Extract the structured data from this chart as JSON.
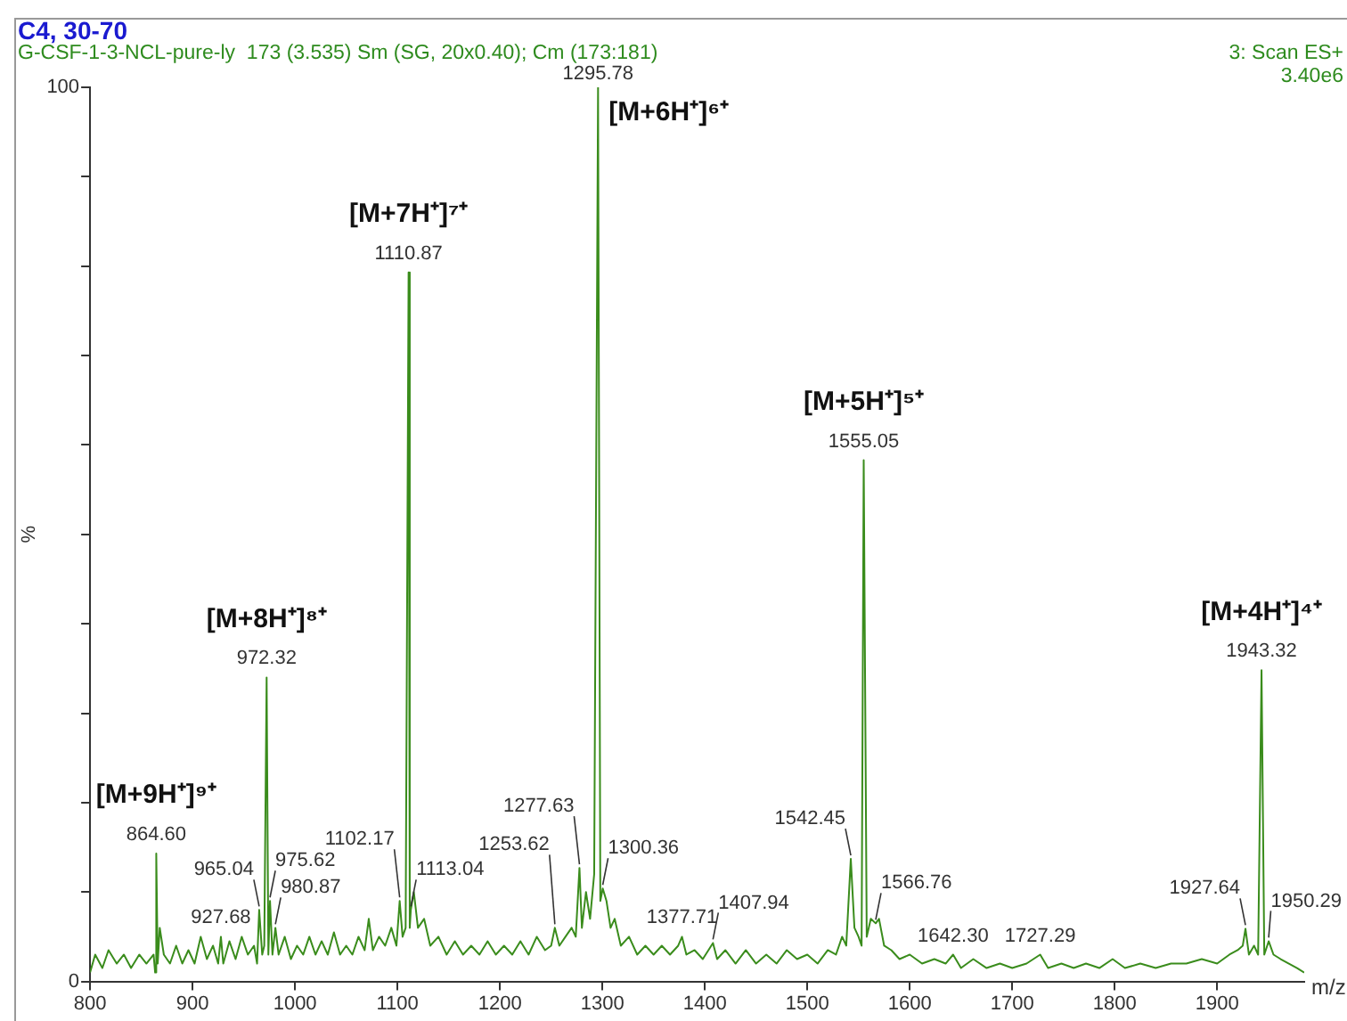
{
  "chart_data": {
    "type": "line",
    "title": "C4, 30-70",
    "subtitle": "G-CSF-1-3-NCL-pure-ly  173 (3.535) Sm (SG, 20x0.40); Cm (173:181)",
    "xlabel": "m/z",
    "ylabel": "%",
    "xlim": [
      800,
      1985
    ],
    "xticks": [
      800,
      900,
      1000,
      1100,
      1200,
      1300,
      1400,
      1500,
      1600,
      1700,
      1800,
      1900
    ],
    "ylim": [
      0,
      100
    ],
    "yticks": [
      0,
      {
        "value": 10,
        "label": null
      },
      {
        "value": 20,
        "label": null
      },
      {
        "value": 30,
        "label": null
      },
      {
        "value": 40,
        "label": null
      },
      {
        "value": 50,
        "label": null
      },
      {
        "value": 60,
        "label": null
      },
      {
        "value": 70,
        "label": null
      },
      {
        "value": 80,
        "label": null
      },
      {
        "value": 90,
        "label": null
      },
      100
    ],
    "grid": false,
    "legend": false,
    "marker": "none",
    "line_style": "solid",
    "series": [
      {
        "color": "#3a8c1c",
        "x": [
          800,
          805,
          812,
          818,
          826,
          833,
          840,
          848,
          855,
          862,
          863.5,
          864.6,
          866,
          868,
          872,
          878,
          884,
          890,
          896,
          902,
          908,
          914,
          920,
          925,
          927.68,
          930,
          936,
          942,
          948,
          954,
          960,
          963,
          965.04,
          968,
          970,
          972.32,
          974,
          975.62,
          978,
          980.87,
          984,
          990,
          996,
          1002,
          1008,
          1014,
          1020,
          1026,
          1032,
          1038,
          1044,
          1050,
          1056,
          1062,
          1068,
          1072,
          1076,
          1082,
          1088,
          1094,
          1099,
          1102.17,
          1105,
          1108,
          1110.87,
          1112,
          1113.04,
          1116,
          1120,
          1126,
          1132,
          1140,
          1148,
          1156,
          1164,
          1172,
          1180,
          1188,
          1196,
          1204,
          1212,
          1220,
          1228,
          1236,
          1244,
          1250,
          1253.62,
          1258,
          1264,
          1270,
          1274,
          1277.63,
          1280,
          1284,
          1288,
          1292,
          1295.78,
          1298,
          1300.36,
          1304,
          1308,
          1312,
          1318,
          1326,
          1334,
          1342,
          1350,
          1358,
          1366,
          1374,
          1377.71,
          1382,
          1390,
          1398,
          1407.94,
          1412,
          1420,
          1430,
          1440,
          1450,
          1460,
          1470,
          1480,
          1490,
          1500,
          1510,
          1520,
          1528,
          1534,
          1538,
          1542.45,
          1546,
          1550,
          1553,
          1555.05,
          1558,
          1562,
          1566.76,
          1570,
          1575,
          1582,
          1590,
          1600,
          1612,
          1624,
          1635,
          1642.3,
          1650,
          1662,
          1675,
          1688,
          1700,
          1714,
          1727.29,
          1735,
          1748,
          1760,
          1772,
          1785,
          1798,
          1810,
          1825,
          1840,
          1855,
          1870,
          1885,
          1900,
          1912,
          1920,
          1925,
          1927.64,
          1931,
          1936,
          1940,
          1943.32,
          1946,
          1950.29,
          1955,
          1962,
          1970,
          1978,
          1985
        ],
        "values": [
          1,
          3,
          1.5,
          3.5,
          2,
          3,
          1.5,
          3,
          2,
          3,
          1,
          14.3,
          2,
          6,
          3,
          2,
          4,
          2,
          3.5,
          2,
          5,
          2.5,
          4,
          2,
          5,
          2,
          4.5,
          2.5,
          5,
          3,
          4,
          2,
          8,
          3,
          4,
          34,
          3,
          9,
          3,
          6,
          3,
          5,
          2.5,
          4,
          3,
          5,
          3,
          4.5,
          3,
          5.5,
          3,
          4,
          3,
          5,
          3.5,
          7,
          3.5,
          5,
          4,
          6,
          4,
          9,
          5,
          6,
          79.3,
          6,
          8,
          10,
          6,
          7,
          4,
          5,
          3,
          4.5,
          3,
          4,
          3,
          4.5,
          3,
          4,
          3,
          4.5,
          3,
          5,
          3.5,
          4,
          6,
          4,
          5,
          6,
          5,
          12.7,
          6,
          10,
          7,
          12,
          100,
          9,
          10.4,
          9,
          6,
          7,
          4,
          5,
          3,
          4,
          3,
          4,
          3,
          4,
          5,
          3,
          3.5,
          2.5,
          4.3,
          2.5,
          3.5,
          2,
          3.5,
          2,
          3,
          2,
          3.5,
          2.5,
          3,
          2,
          3.5,
          3,
          5,
          4,
          13.7,
          6,
          5,
          4,
          58.3,
          5,
          7,
          6.5,
          7,
          4,
          3.5,
          2.5,
          3,
          2,
          2.5,
          2,
          3,
          1.5,
          2.5,
          1.5,
          2,
          1.5,
          2,
          3,
          1.5,
          2,
          1.5,
          2,
          1.5,
          2.5,
          1.5,
          2,
          1.5,
          2,
          2,
          2.5,
          2,
          3,
          3.5,
          4,
          5.9,
          3,
          4,
          3,
          34.8,
          3,
          4.5,
          3,
          2.5,
          2,
          1.5,
          1
        ]
      }
    ],
    "annotations": [
      "3: Scan ES+",
      "3.40e6",
      {
        "text": "864.60",
        "x": 864.6,
        "y": 14.3
      },
      {
        "text": "[M+9H⁺]⁹⁺",
        "x": 864.6,
        "y": 14.3
      },
      {
        "text": "927.68",
        "x": 927.68,
        "y": 5
      },
      {
        "text": "965.04",
        "x": 965.04,
        "y": 8
      },
      {
        "text": "972.32",
        "x": 972.32,
        "y": 34
      },
      {
        "text": "[M+8H⁺]⁸⁺",
        "x": 972.32,
        "y": 34
      },
      {
        "text": "975.62",
        "x": 975.62,
        "y": 9
      },
      {
        "text": "980.87",
        "x": 980.87,
        "y": 6
      },
      {
        "text": "1102.17",
        "x": 1102.17,
        "y": 9
      },
      {
        "text": "1110.87",
        "x": 1110.87,
        "y": 79.3
      },
      {
        "text": "[M+7H⁺]⁷⁺",
        "x": 1110.87,
        "y": 79.3
      },
      {
        "text": "1113.04",
        "x": 1113.04,
        "y": 8
      },
      {
        "text": "1253.62",
        "x": 1253.62,
        "y": 6
      },
      {
        "text": "1277.63",
        "x": 1277.63,
        "y": 12.7
      },
      {
        "text": "1295.78",
        "x": 1295.78,
        "y": 100
      },
      {
        "text": "[M+6H⁺]⁶⁺",
        "x": 1295.78,
        "y": 100
      },
      {
        "text": "1300.36",
        "x": 1300.36,
        "y": 10.4
      },
      {
        "text": "1377.71",
        "x": 1377.71,
        "y": 5
      },
      {
        "text": "1407.94",
        "x": 1407.94,
        "y": 4.3
      },
      {
        "text": "1542.45",
        "x": 1542.45,
        "y": 13.7
      },
      {
        "text": "1555.05",
        "x": 1555.05,
        "y": 58.3
      },
      {
        "text": "[M+5H⁺]⁵⁺",
        "x": 1555.05,
        "y": 58.3
      },
      {
        "text": "1566.76",
        "x": 1566.76,
        "y": 6.5
      },
      {
        "text": "1642.30",
        "x": 1642.3,
        "y": 3
      },
      {
        "text": "1727.29",
        "x": 1727.29,
        "y": 3
      },
      {
        "text": "1927.64",
        "x": 1927.64,
        "y": 5.9
      },
      {
        "text": "1943.32",
        "x": 1943.32,
        "y": 34.8
      },
      {
        "text": "[M+4H⁺]⁴⁺",
        "x": 1943.32,
        "y": 34.8
      },
      {
        "text": "1950.29",
        "x": 1950.29,
        "y": 4.5
      }
    ]
  }
}
